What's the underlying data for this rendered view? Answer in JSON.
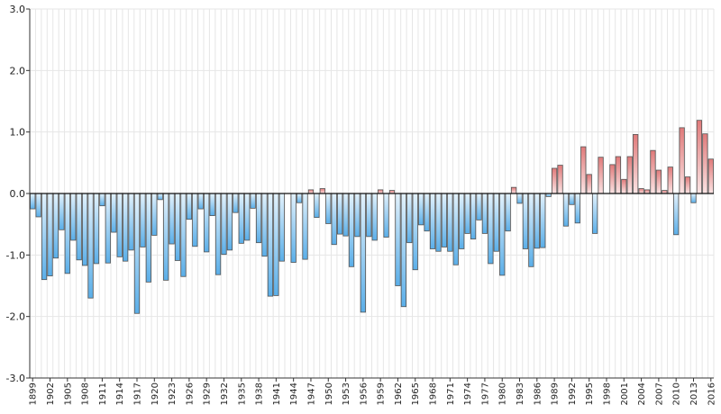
{
  "chart_data": {
    "type": "bar",
    "title": "",
    "xlabel": "",
    "ylabel": "",
    "ylim": [
      -3.0,
      3.0
    ],
    "yticks": [
      3.0,
      2.0,
      1.0,
      0.0,
      -1.0,
      -2.0,
      -3.0
    ],
    "ytick_labels": [
      "3.0",
      "2.0",
      "1.0",
      "0.0",
      "-1.0",
      "-2.0",
      "-3.0"
    ],
    "xtick_labels": [
      "1899",
      "1902",
      "1905",
      "1908",
      "1911",
      "1914",
      "1917",
      "1920",
      "1923",
      "1926",
      "1929",
      "1932",
      "1935",
      "1938",
      "1941",
      "1944",
      "1947",
      "1950",
      "1953",
      "1956",
      "1959",
      "1962",
      "1965",
      "1968",
      "1971",
      "1974",
      "1977",
      "1980",
      "1983",
      "1986",
      "1989",
      "1992",
      "1995",
      "1998",
      "2001",
      "2004",
      "2007",
      "2010",
      "2013",
      "2016"
    ],
    "grid": true,
    "legend": "none",
    "colors": {
      "negative_light": "#e3f2fc",
      "negative_dark": "#5aaee8",
      "positive_light": "#fbe4e4",
      "positive_dark": "#e07a7a",
      "bar_stroke": "#555555",
      "grid": "#e6e6e6",
      "axis": "#333333"
    },
    "categories": [
      "1899",
      "1900",
      "1901",
      "1902",
      "1903",
      "1904",
      "1905",
      "1906",
      "1907",
      "1908",
      "1909",
      "1910",
      "1911",
      "1912",
      "1913",
      "1914",
      "1915",
      "1916",
      "1917",
      "1918",
      "1919",
      "1920",
      "1921",
      "1922",
      "1923",
      "1924",
      "1925",
      "1926",
      "1927",
      "1928",
      "1929",
      "1930",
      "1931",
      "1932",
      "1933",
      "1934",
      "1935",
      "1936",
      "1937",
      "1938",
      "1939",
      "1940",
      "1941",
      "1942",
      "1943",
      "1944",
      "1945",
      "1946",
      "1947",
      "1948",
      "1949",
      "1950",
      "1951",
      "1952",
      "1953",
      "1954",
      "1955",
      "1956",
      "1957",
      "1958",
      "1959",
      "1960",
      "1961",
      "1962",
      "1963",
      "1964",
      "1965",
      "1966",
      "1967",
      "1968",
      "1969",
      "1970",
      "1971",
      "1972",
      "1973",
      "1974",
      "1975",
      "1976",
      "1977",
      "1978",
      "1979",
      "1980",
      "1981",
      "1982",
      "1983",
      "1984",
      "1985",
      "1986",
      "1987",
      "1988",
      "1989",
      "1990",
      "1991",
      "1992",
      "1993",
      "1994",
      "1995",
      "1996",
      "1997",
      "1998",
      "1999",
      "2000",
      "2001",
      "2002",
      "2003",
      "2004",
      "2005",
      "2006",
      "2007",
      "2008",
      "2009",
      "2010",
      "2011",
      "2012",
      "2013",
      "2014",
      "2015",
      "2016"
    ],
    "values": [
      -0.25,
      -0.38,
      -1.4,
      -1.34,
      -1.05,
      -0.59,
      -1.3,
      -0.76,
      -1.08,
      -1.17,
      -1.7,
      -1.14,
      -0.2,
      -1.13,
      -0.63,
      -1.03,
      -1.1,
      -0.92,
      -1.95,
      -0.87,
      -1.44,
      -0.68,
      -0.1,
      -1.41,
      -0.82,
      -1.09,
      -1.35,
      -0.42,
      -0.86,
      -0.25,
      -0.95,
      -0.36,
      -1.32,
      -0.99,
      -0.92,
      -0.31,
      -0.81,
      -0.76,
      -0.24,
      -0.8,
      -1.02,
      -1.67,
      -1.66,
      -1.1,
      0.0,
      -1.12,
      -0.15,
      -1.07,
      0.06,
      -0.39,
      0.08,
      -0.49,
      -0.83,
      -0.66,
      -0.69,
      -1.19,
      -0.7,
      -1.93,
      -0.7,
      -0.76,
      0.06,
      -0.71,
      0.05,
      -1.5,
      -1.84,
      -0.8,
      -1.24,
      -0.51,
      -0.61,
      -0.9,
      -0.94,
      -0.87,
      -0.94,
      -1.16,
      -0.9,
      -0.65,
      -0.74,
      -0.43,
      -0.65,
      -1.14,
      -0.94,
      -1.33,
      -0.61,
      0.1,
      -0.16,
      -0.9,
      -1.19,
      -0.89,
      -0.88,
      -0.05,
      0.41,
      0.46,
      -0.53,
      -0.18,
      -0.48,
      0.76,
      0.31,
      -0.65,
      0.59,
      0.0,
      0.47,
      0.6,
      0.23,
      0.6,
      0.96,
      0.08,
      0.06,
      0.7,
      0.38,
      0.05,
      0.43,
      -0.67,
      1.07,
      0.27,
      -0.15,
      1.19,
      0.97,
      0.56
    ]
  }
}
